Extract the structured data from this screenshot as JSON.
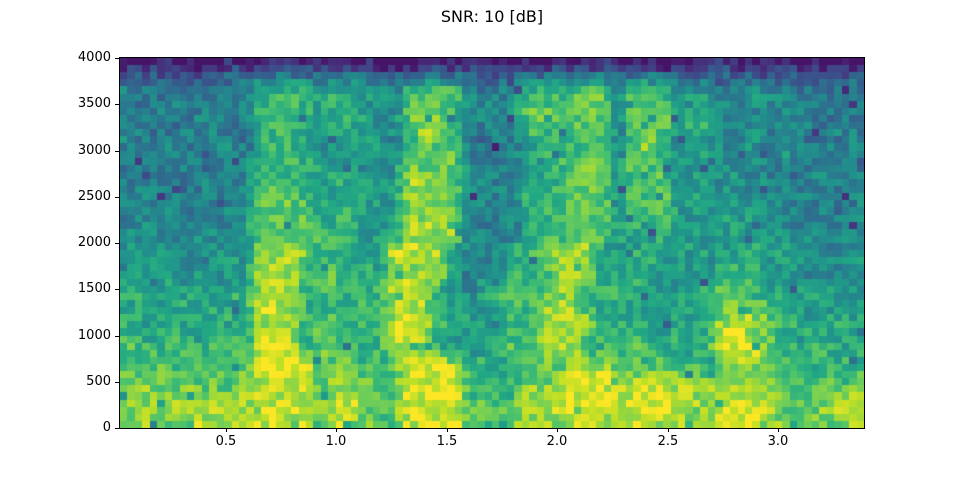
{
  "figure": {
    "background_color": "#ffffff"
  },
  "chart_data": {
    "type": "heatmap",
    "variant": "spectrogram",
    "title": "SNR: 10 [dB]",
    "xlabel": "",
    "ylabel": "",
    "x_range": [
      0.02,
      3.39
    ],
    "y_range": [
      0,
      4000
    ],
    "x_tick_values": [
      0.5,
      1.0,
      1.5,
      2.0,
      2.5,
      3.0
    ],
    "x_tick_labels": [
      "0.5",
      "1.0",
      "1.5",
      "2.0",
      "2.5",
      "3.0"
    ],
    "y_tick_values": [
      0,
      500,
      1000,
      1500,
      2000,
      2500,
      3000,
      3500,
      4000
    ],
    "y_tick_labels": [
      "0",
      "500",
      "1000",
      "1500",
      "2000",
      "2500",
      "3000",
      "3500",
      "4000"
    ],
    "legend": "none",
    "grid_lines": "off",
    "colormap": "viridis",
    "colormap_anchors": [
      [
        0.0,
        "#440154"
      ],
      [
        0.1,
        "#482475"
      ],
      [
        0.2,
        "#414487"
      ],
      [
        0.3,
        "#355f8d"
      ],
      [
        0.4,
        "#2a788e"
      ],
      [
        0.5,
        "#21918c"
      ],
      [
        0.6,
        "#22a884"
      ],
      [
        0.7,
        "#44bf70"
      ],
      [
        0.8,
        "#7ad151"
      ],
      [
        0.9,
        "#bddf26"
      ],
      [
        1.0,
        "#fde725"
      ]
    ],
    "intensity_grid": {
      "scale": "0=lowest energy (dark purple/navy) .. 9=highest energy (bright yellow)",
      "orientation": "rows listed top (4000 Hz) to bottom (0 Hz); columns left (0 s) to right (3.39 s)",
      "cols": 50,
      "rows": 26,
      "rows_top_to_bottom": [
        "11211012112112112110121121110211211201112112111011",
        "33232333344443443334444323344444434443333332332323",
        "44344434466665665547777444466677747774554454434434",
        "43443444466665665447776444577677748674554445443444",
        "44434443466665665457876444477777748585664544444343",
        "44344444366664555546876434466677746864654454443444",
        "43444344466664555547777443456667646865654454544434",
        "34444434466665554457777444455677748674555444444443",
        "44434444466665665458877444456677756864554544434444",
        "44443443477765555558877444466677748684555445444344",
        "44444344477775665558887444466677757775555554444434",
        "44544444577775665458887444456677757574545555444444",
        "45444544577777665558888444466678755565555555544444",
        "54544454588886655699884444667888556555555565545445",
        "45545455588866666588885444666888565655556665554545",
        "55454545599867765688885454666888556555556665555454",
        "66565656688866666699855456667875666555577765555555",
        "56556565699866666688855556768886565556568887655555",
        "65665656588867766699885555667888665656568887665565",
        "66566566699867766699855556668886666656569987666566",
        "76676676699967766688865557778886667666569997666656",
        "67767667799997776679998665677788877676768887766666",
        "77776777799997887779999666677799978888778888776767",
        "78778777888887887779999666688899989999888888777778",
        "88898898899997997779999777788999989999889998777888",
        "78687887899897887679989776788899878988789898767787"
      ]
    }
  }
}
